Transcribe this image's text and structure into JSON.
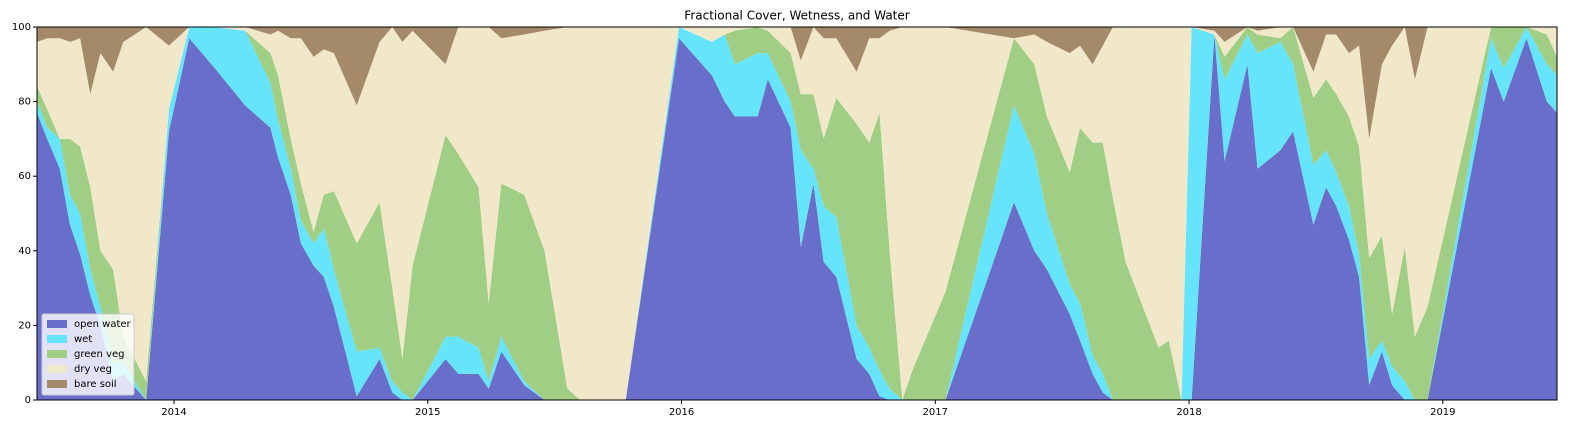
{
  "chart_data": {
    "type": "stacked_area",
    "title": "Fractional Cover, Wetness, and Water",
    "x": [
      2013.46,
      2013.5,
      2013.55,
      2013.59,
      2013.63,
      2013.67,
      2013.71,
      2013.76,
      2013.8,
      2013.89,
      2013.98,
      2014.06,
      2014.16,
      2014.28,
      2014.38,
      2014.41,
      2014.46,
      2014.5,
      2014.55,
      2014.59,
      2014.63,
      2014.72,
      2014.81,
      2014.86,
      2014.9,
      2014.94,
      2015.07,
      2015.12,
      2015.2,
      2015.24,
      2015.29,
      2015.38,
      2015.46,
      2015.55,
      2015.6,
      2015.78,
      2015.99,
      2016.12,
      2016.17,
      2016.21,
      2016.3,
      2016.34,
      2016.43,
      2016.47,
      2016.52,
      2016.56,
      2016.61,
      2016.69,
      2016.74,
      2016.78,
      2016.82,
      2016.87,
      2016.91,
      2017.04,
      2017.31,
      2017.39,
      2017.44,
      2017.53,
      2017.57,
      2017.62,
      2017.66,
      2017.7,
      2017.75,
      2017.88,
      2017.92,
      2017.97,
      2018.01,
      2018.1,
      2018.14,
      2018.23,
      2018.27,
      2018.36,
      2018.41,
      2018.49,
      2018.54,
      2018.58,
      2018.63,
      2018.67,
      2018.71,
      2018.76,
      2018.8,
      2018.85,
      2018.89,
      2018.94,
      2019.19,
      2019.24,
      2019.33,
      2019.41,
      2019.45
    ],
    "series": [
      {
        "name": "open water",
        "color": "#6a6ecb",
        "values": [
          77,
          70,
          62,
          47,
          39,
          28,
          20,
          5,
          7,
          0,
          72,
          97,
          89,
          79,
          73,
          65,
          55,
          42,
          36,
          33,
          25,
          1,
          11,
          2,
          0,
          0,
          11,
          7,
          7,
          3,
          13,
          4,
          0,
          0,
          0,
          0,
          97,
          87,
          80,
          76,
          76,
          86,
          73,
          41,
          58,
          37,
          33,
          11,
          7,
          1,
          0,
          0,
          0,
          0,
          53,
          40,
          35,
          23,
          16,
          7,
          2,
          0,
          0,
          0,
          0,
          0,
          0,
          98,
          64,
          90,
          62,
          67,
          72,
          47,
          57,
          52,
          43,
          33,
          4,
          13,
          4,
          0,
          0,
          0,
          89,
          80,
          97,
          80,
          77
        ]
      },
      {
        "name": "wet",
        "color": "#66e4fb",
        "values": [
          3,
          3,
          8,
          8,
          11,
          7,
          5,
          5,
          3,
          0,
          6,
          3,
          11,
          20,
          12,
          10,
          7,
          6,
          6,
          13,
          10,
          12,
          3,
          3,
          2,
          0,
          6,
          10,
          7,
          2,
          4,
          1,
          0,
          0,
          0,
          0,
          3,
          9,
          18,
          14,
          17,
          7,
          7,
          26,
          4,
          15,
          16,
          9,
          7,
          7,
          3,
          0,
          0,
          0,
          26,
          26,
          15,
          8,
          10,
          5,
          5,
          0,
          0,
          0,
          0,
          0,
          100,
          0,
          22,
          8,
          31,
          29,
          18,
          16,
          10,
          9,
          9,
          6,
          7,
          3,
          5,
          5,
          0,
          0,
          8,
          9,
          3,
          10,
          10
        ]
      },
      {
        "name": "green veg",
        "color": "#9fce84",
        "values": [
          4,
          5,
          0,
          15,
          18,
          22,
          15,
          25,
          7,
          5,
          0,
          0,
          0,
          0,
          8,
          12,
          8,
          10,
          3,
          9,
          21,
          29,
          39,
          25,
          9,
          36,
          54,
          49,
          43,
          21,
          41,
          50,
          40,
          3,
          0,
          0,
          0,
          0,
          0,
          9,
          7,
          6,
          13,
          15,
          20,
          18,
          32,
          54,
          55,
          69,
          37,
          0,
          8,
          29,
          18,
          24,
          26,
          30,
          47,
          57,
          62,
          54,
          37,
          14,
          16,
          0,
          0,
          0,
          6,
          2,
          5,
          1,
          10,
          18,
          19,
          21,
          24,
          29,
          27,
          28,
          14,
          36,
          17,
          25,
          3,
          11,
          0,
          8,
          5
        ]
      },
      {
        "name": "dry veg",
        "color": "#f1e7c9",
        "values": [
          12,
          19,
          27,
          26,
          29,
          25,
          53,
          53,
          79,
          95,
          17,
          0,
          0,
          1,
          5,
          12,
          27,
          39,
          47,
          39,
          37,
          37,
          43,
          70,
          85,
          63,
          19,
          34,
          43,
          74,
          39,
          43,
          59,
          97,
          100,
          100,
          0,
          4,
          2,
          1,
          0,
          1,
          7,
          9,
          18,
          27,
          16,
          14,
          28,
          20,
          59,
          100,
          92,
          71,
          0,
          8,
          20,
          32,
          22,
          21,
          26,
          46,
          63,
          86,
          84,
          100,
          0,
          1,
          4,
          0,
          1,
          3,
          0,
          7,
          12,
          16,
          17,
          27,
          32,
          46,
          72,
          59,
          69,
          75,
          0,
          0,
          0,
          2,
          8
        ]
      },
      {
        "name": "bare soil",
        "color": "#a58a6a",
        "values": [
          4,
          3,
          3,
          4,
          3,
          18,
          7,
          12,
          4,
          0,
          5,
          0,
          0,
          0,
          2,
          1,
          3,
          3,
          8,
          6,
          7,
          21,
          4,
          0,
          4,
          1,
          10,
          0,
          0,
          0,
          3,
          2,
          1,
          0,
          0,
          0,
          0,
          0,
          0,
          0,
          0,
          0,
          0,
          9,
          0,
          3,
          3,
          12,
          3,
          3,
          1,
          0,
          0,
          0,
          3,
          2,
          4,
          7,
          5,
          10,
          5,
          0,
          0,
          0,
          0,
          0,
          0,
          1,
          4,
          0,
          1,
          0,
          0,
          12,
          2,
          2,
          7,
          5,
          30,
          10,
          5,
          0,
          14,
          0,
          0,
          0,
          0,
          0,
          0
        ]
      }
    ],
    "xlim": [
      2013.46,
      2019.45
    ],
    "xticks": [
      2014,
      2015,
      2016,
      2017,
      2018,
      2019
    ],
    "ylim": [
      0,
      100
    ],
    "yticks": [
      0,
      20,
      40,
      60,
      80,
      100
    ],
    "legend": "lower left"
  }
}
